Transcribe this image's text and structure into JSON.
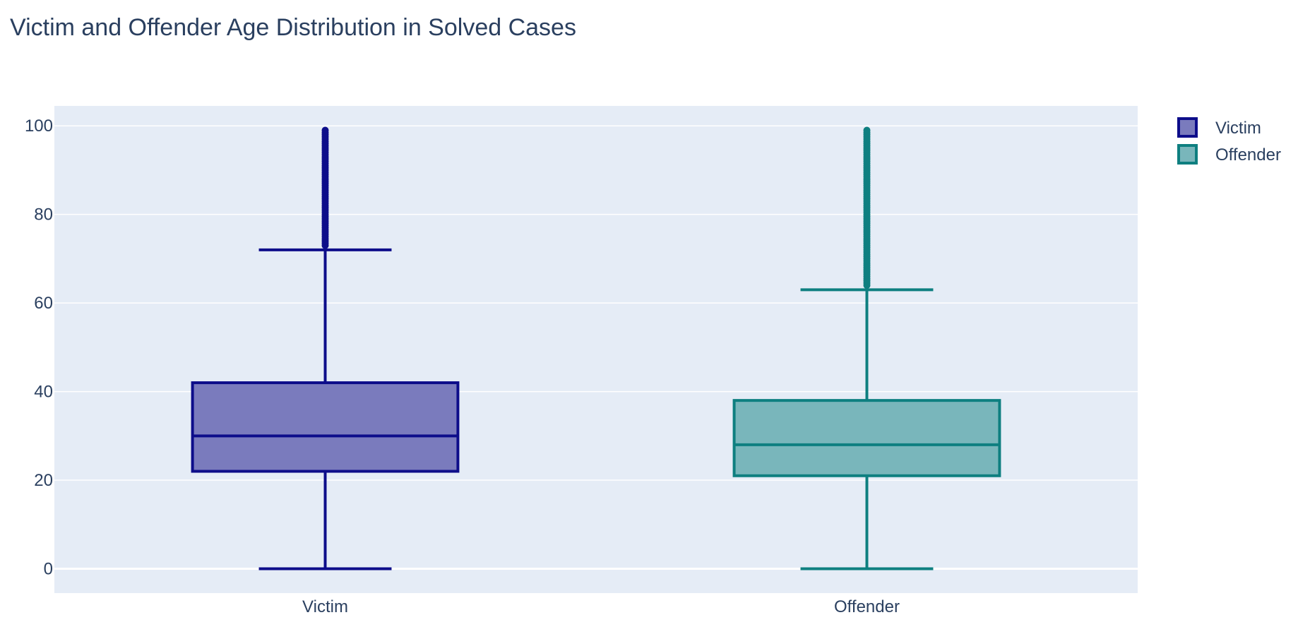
{
  "chart_data": {
    "type": "box",
    "title": "Victim and Offender Age Distribution in Solved Cases",
    "xlabel": "",
    "ylabel": "",
    "ylim": [
      -5.5,
      104.5
    ],
    "yticks": [
      0,
      20,
      40,
      60,
      80,
      100
    ],
    "grid": true,
    "legend_position": "top-right",
    "categories": [
      "Victim",
      "Offender"
    ],
    "series": [
      {
        "name": "Victim",
        "stroke": "#0d0d8a",
        "fill": "#7a7bbd",
        "min": 0,
        "q1": 22,
        "median": 30,
        "q3": 42,
        "upper_fence": 72,
        "outlier_min": 73,
        "outlier_max": 99
      },
      {
        "name": "Offender",
        "stroke": "#0e7f80",
        "fill": "#79b6bb",
        "min": 0,
        "q1": 21,
        "median": 28,
        "q3": 38,
        "upper_fence": 63,
        "outlier_min": 64,
        "outlier_max": 99
      }
    ],
    "plot_bg": "#e5ecf6",
    "grid_color": "#ffffff",
    "text_color": "#2a3f5f"
  }
}
